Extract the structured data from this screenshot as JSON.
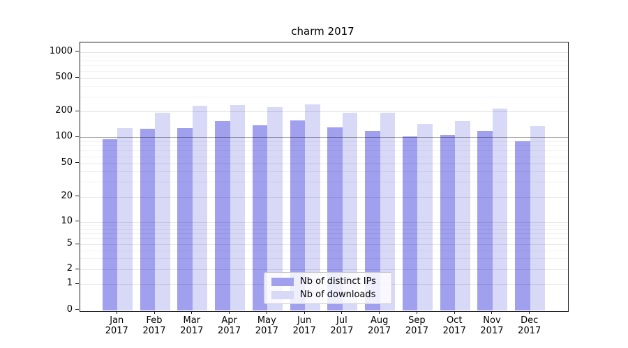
{
  "title": "charm 2017",
  "colors": {
    "bar_distinct_ips": "#a0a0ee",
    "bar_downloads": "#d8d8f7",
    "grid_minor": "rgba(0,0,0,0.05)",
    "grid_major": "rgba(0,0,0,0.10)",
    "grid_hundred_line": "rgba(0,0,0,0.32)",
    "axis": "#1a1a1a"
  },
  "chart_data": {
    "type": "bar",
    "title": "charm 2017",
    "categories": [
      "Jan",
      "Feb",
      "Mar",
      "Apr",
      "May",
      "Jun",
      "Jul",
      "Aug",
      "Sep",
      "Oct",
      "Nov",
      "Dec"
    ],
    "category_year": "2017",
    "series": [
      {
        "name": "Nb of distinct IPs",
        "color": "#a0a0ee",
        "values": [
          95,
          125,
          127,
          153,
          137,
          157,
          131,
          119,
          102,
          105,
          118,
          89
        ]
      },
      {
        "name": "Nb of downloads",
        "color": "#d8d8f7",
        "values": [
          127,
          193,
          232,
          238,
          224,
          242,
          194,
          191,
          144,
          153,
          217,
          135
        ]
      }
    ],
    "xlabel": "",
    "ylabel": "",
    "y_axis": {
      "scale": "symlog",
      "ticks": [
        0,
        1,
        2,
        5,
        10,
        20,
        50,
        100,
        200,
        500,
        1000
      ],
      "range": [
        0,
        1000
      ]
    },
    "grid": true,
    "legend": {
      "position": "bottom-center",
      "entries": [
        "Nb of distinct IPs",
        "Nb of downloads"
      ]
    }
  }
}
